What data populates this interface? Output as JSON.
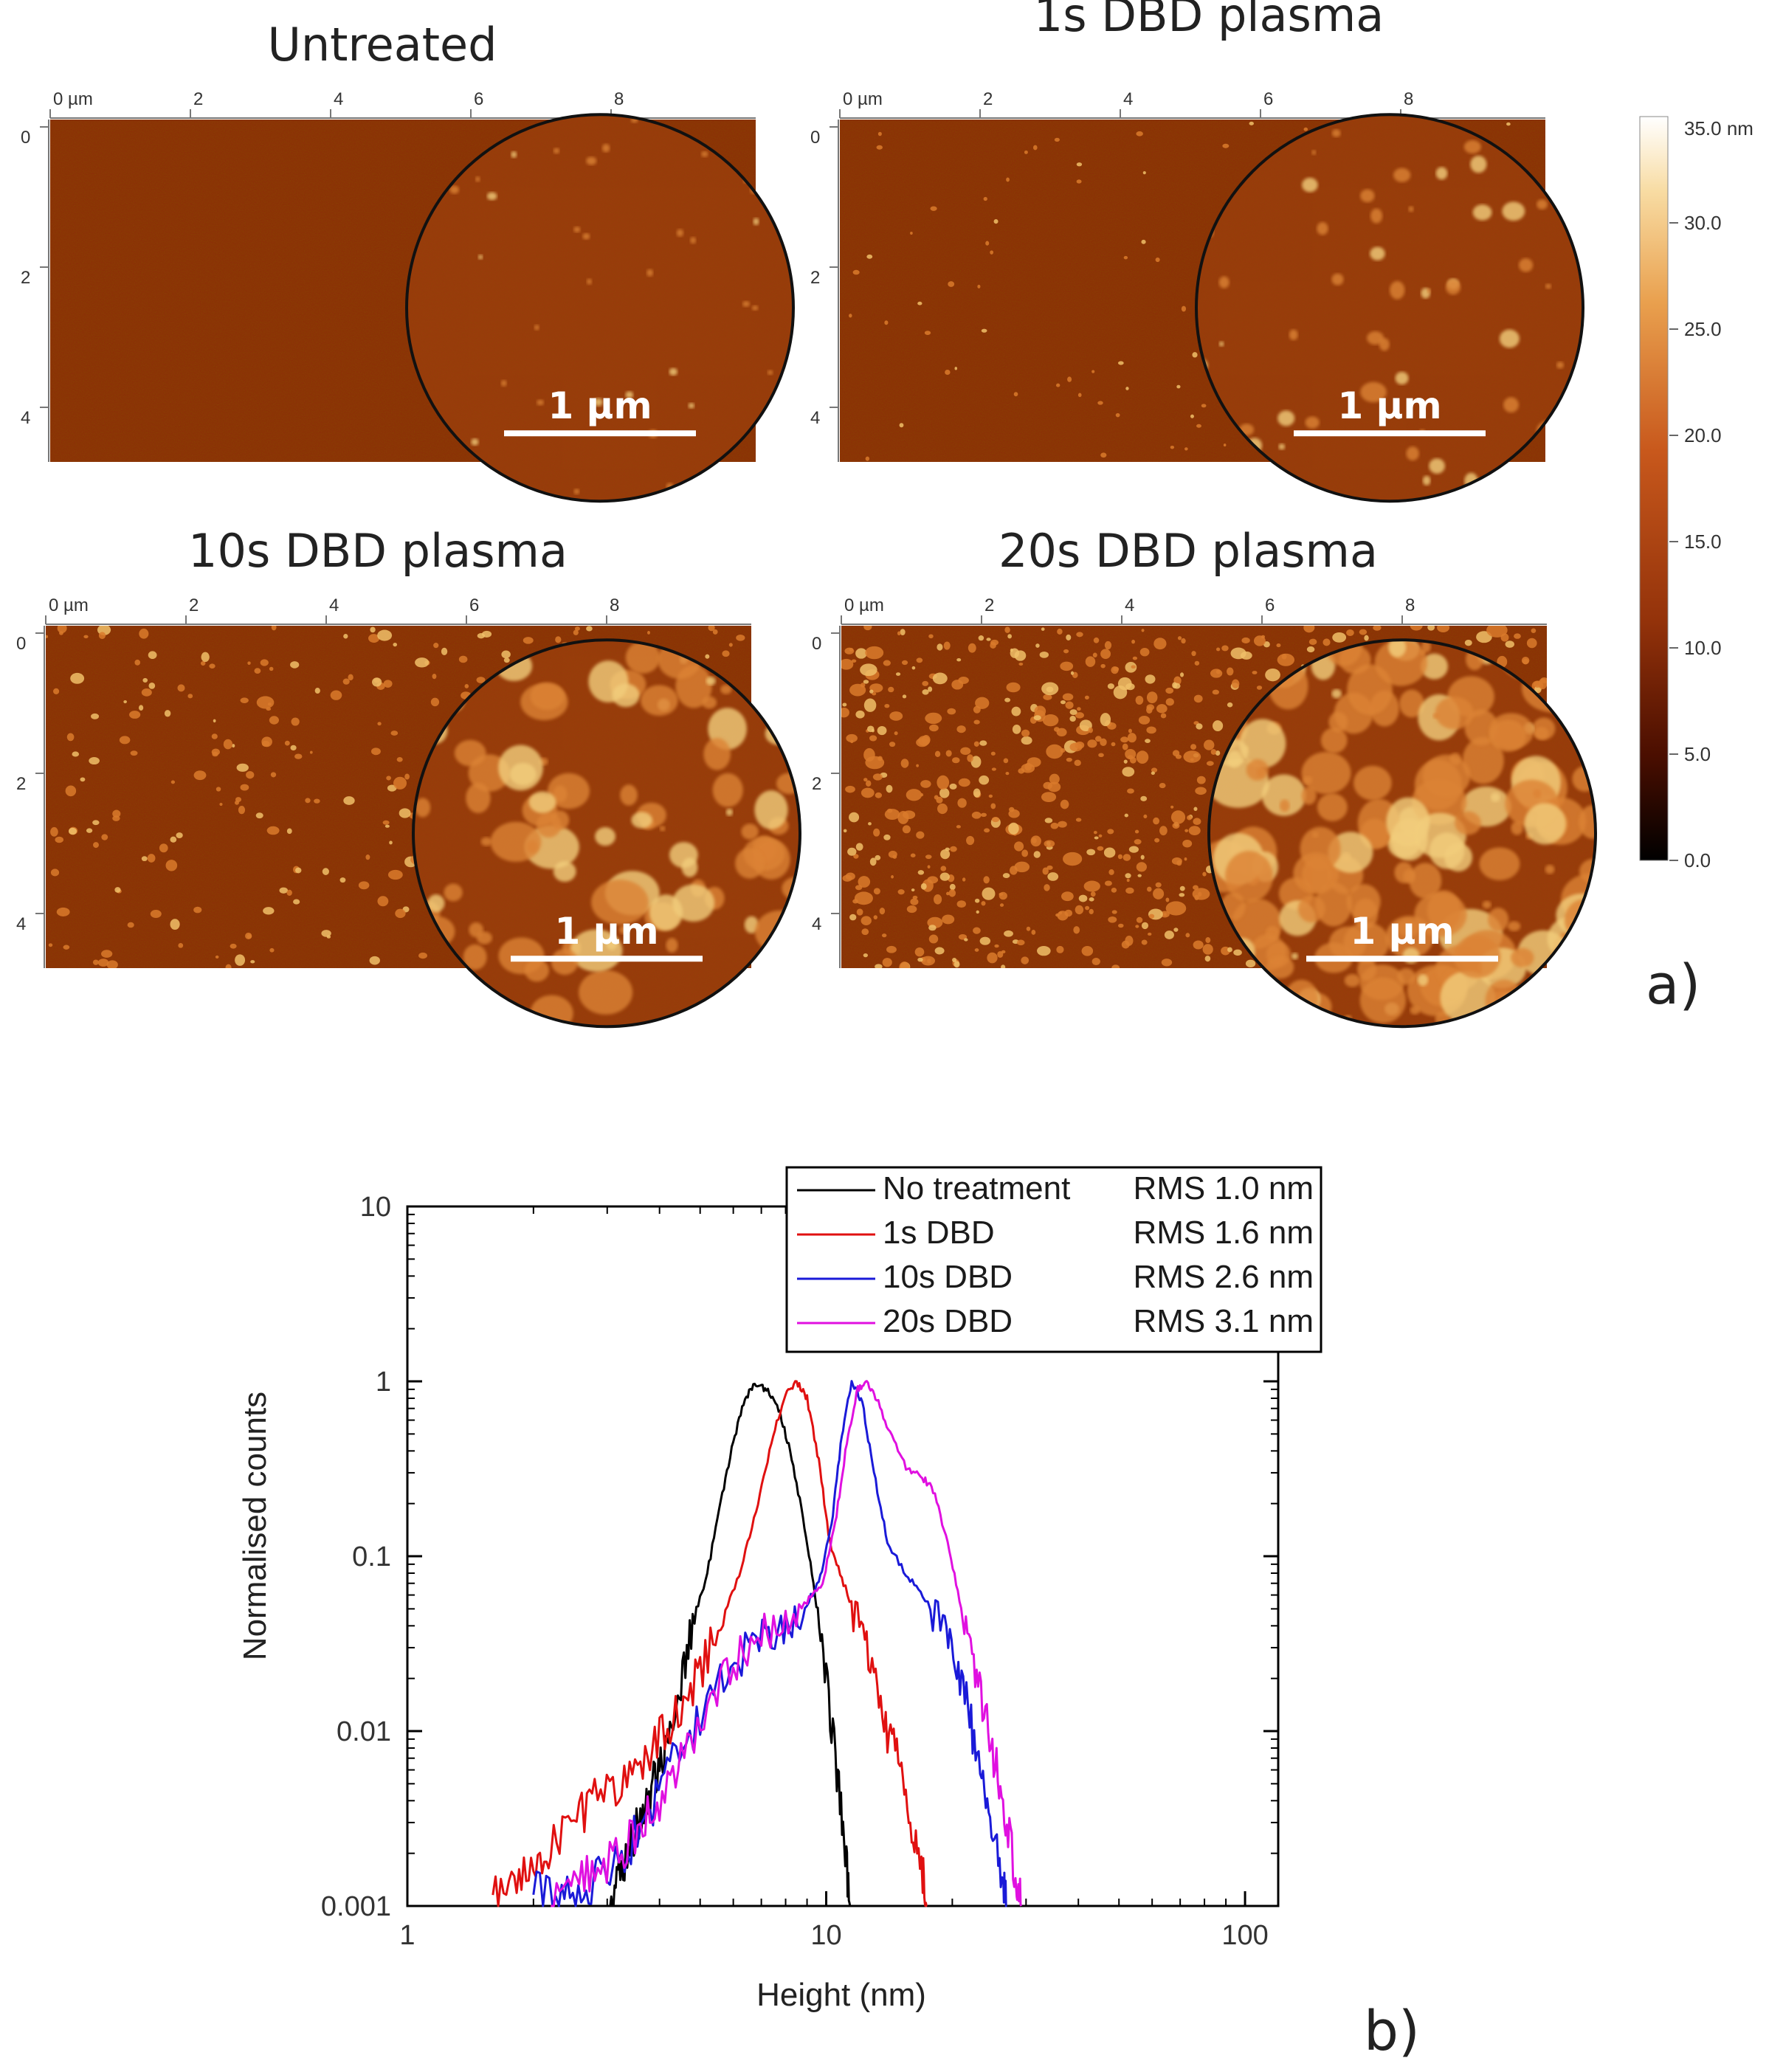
{
  "panel_a": {
    "label": "a)",
    "images": [
      {
        "title": "Untreated",
        "scale_bar": "1 µm",
        "density": 0,
        "blob_max": 0
      },
      {
        "title": "1s DBD plasma",
        "scale_bar": "1 µm",
        "density": 0.12,
        "blob_max": 1.6
      },
      {
        "title": "10s DBD plasma",
        "scale_bar": "1 µm",
        "density": 0.35,
        "blob_max": 5
      },
      {
        "title": "20s DBD plasma",
        "scale_bar": "1 µm",
        "density": 1,
        "blob_max": 6
      }
    ],
    "x_ticks": [
      "0 µm",
      "2",
      "4",
      "6",
      "8"
    ],
    "y_ticks": [
      "0",
      "2",
      "4"
    ],
    "colorbar": {
      "max_label": "35.0 nm",
      "ticks": [
        "30.0",
        "25.0",
        "20.0",
        "15.0",
        "10.0",
        "5.0",
        "0.0"
      ]
    }
  },
  "chart_data": {
    "type": "line",
    "panel_label": "b)",
    "xlabel": "Height (nm)",
    "ylabel": "Normalised counts",
    "xscale": "log",
    "yscale": "log",
    "xlim": [
      1,
      120
    ],
    "ylim": [
      0.001,
      10
    ],
    "x_ticks": [
      1,
      10,
      100
    ],
    "x_tick_labels": [
      "1",
      "10",
      "100"
    ],
    "y_ticks": [
      0.001,
      0.01,
      0.1,
      1,
      10
    ],
    "y_tick_labels": [
      "0.001",
      "0.01",
      "0.1",
      "1",
      "10"
    ],
    "legend_position": "top-center",
    "series": [
      {
        "name": "No treatment",
        "rms": "RMS 1.0 nm",
        "color": "#000000",
        "points": [
          [
            3.05,
            0.001
          ],
          [
            3.2,
            0.0015
          ],
          [
            3.4,
            0.0022
          ],
          [
            3.6,
            0.0032
          ],
          [
            3.8,
            0.0045
          ],
          [
            4.0,
            0.006
          ],
          [
            4.2,
            0.01
          ],
          [
            4.5,
            0.02
          ],
          [
            4.8,
            0.04
          ],
          [
            5.2,
            0.08
          ],
          [
            5.6,
            0.2
          ],
          [
            6.0,
            0.45
          ],
          [
            6.4,
            0.8
          ],
          [
            6.8,
            0.97
          ],
          [
            7.2,
            0.9
          ],
          [
            7.7,
            0.7
          ],
          [
            8.2,
            0.4
          ],
          [
            8.8,
            0.17
          ],
          [
            9.4,
            0.06
          ],
          [
            10.0,
            0.02
          ],
          [
            10.6,
            0.006
          ],
          [
            11.1,
            0.002
          ],
          [
            11.4,
            0.001
          ]
        ]
      },
      {
        "name": "1s DBD",
        "rms": "RMS 1.6 nm",
        "color": "#e01010",
        "points": [
          [
            1.6,
            0.0012
          ],
          [
            1.8,
            0.0015
          ],
          [
            2.0,
            0.0018
          ],
          [
            2.2,
            0.0022
          ],
          [
            2.5,
            0.003
          ],
          [
            2.8,
            0.004
          ],
          [
            3.2,
            0.005
          ],
          [
            3.6,
            0.0065
          ],
          [
            4.0,
            0.009
          ],
          [
            4.5,
            0.014
          ],
          [
            5.0,
            0.022
          ],
          [
            5.6,
            0.04
          ],
          [
            6.2,
            0.08
          ],
          [
            6.8,
            0.18
          ],
          [
            7.4,
            0.45
          ],
          [
            8.0,
            0.85
          ],
          [
            8.5,
            0.99
          ],
          [
            9.0,
            0.8
          ],
          [
            9.6,
            0.35
          ],
          [
            10.2,
            0.12
          ],
          [
            11.0,
            0.07
          ],
          [
            12.0,
            0.04
          ],
          [
            13.0,
            0.02
          ],
          [
            14.0,
            0.01
          ],
          [
            15.0,
            0.006
          ],
          [
            16.0,
            0.003
          ],
          [
            17.0,
            0.0015
          ],
          [
            17.4,
            0.001
          ]
        ]
      },
      {
        "name": "10s DBD",
        "rms": "RMS 2.6 nm",
        "color": "#1a1ad8",
        "points": [
          [
            2.0,
            0.0012
          ],
          [
            2.3,
            0.0011
          ],
          [
            2.6,
            0.0012
          ],
          [
            2.9,
            0.0015
          ],
          [
            3.3,
            0.002
          ],
          [
            3.8,
            0.0035
          ],
          [
            4.3,
            0.0065
          ],
          [
            5.0,
            0.012
          ],
          [
            5.8,
            0.022
          ],
          [
            6.8,
            0.032
          ],
          [
            7.8,
            0.04
          ],
          [
            8.8,
            0.05
          ],
          [
            9.6,
            0.07
          ],
          [
            10.3,
            0.15
          ],
          [
            10.9,
            0.5
          ],
          [
            11.5,
            0.99
          ],
          [
            12.2,
            0.75
          ],
          [
            13.0,
            0.3
          ],
          [
            14.0,
            0.12
          ],
          [
            15.5,
            0.08
          ],
          [
            17.0,
            0.06
          ],
          [
            19.0,
            0.04
          ],
          [
            20.5,
            0.025
          ],
          [
            22.0,
            0.012
          ],
          [
            23.5,
            0.005
          ],
          [
            25.0,
            0.0025
          ],
          [
            26.5,
            0.0013
          ],
          [
            27.0,
            0.001
          ]
        ]
      },
      {
        "name": "20s DBD",
        "rms": "RMS 3.1 nm",
        "color": "#e010e0",
        "points": [
          [
            2.2,
            0.001
          ],
          [
            2.5,
            0.0014
          ],
          [
            2.8,
            0.0016
          ],
          [
            3.2,
            0.002
          ],
          [
            3.6,
            0.0028
          ],
          [
            4.0,
            0.004
          ],
          [
            4.5,
            0.007
          ],
          [
            5.2,
            0.013
          ],
          [
            6.0,
            0.024
          ],
          [
            7.0,
            0.036
          ],
          [
            8.0,
            0.045
          ],
          [
            9.0,
            0.055
          ],
          [
            9.8,
            0.07
          ],
          [
            10.5,
            0.15
          ],
          [
            11.2,
            0.45
          ],
          [
            11.9,
            0.9
          ],
          [
            12.5,
            0.98
          ],
          [
            13.2,
            0.8
          ],
          [
            14.2,
            0.5
          ],
          [
            15.5,
            0.32
          ],
          [
            16.8,
            0.29
          ],
          [
            18.0,
            0.24
          ],
          [
            19.5,
            0.12
          ],
          [
            21.0,
            0.05
          ],
          [
            22.5,
            0.025
          ],
          [
            24.0,
            0.012
          ],
          [
            25.5,
            0.006
          ],
          [
            27.0,
            0.003
          ],
          [
            28.5,
            0.0014
          ],
          [
            29.2,
            0.001
          ]
        ]
      }
    ]
  }
}
